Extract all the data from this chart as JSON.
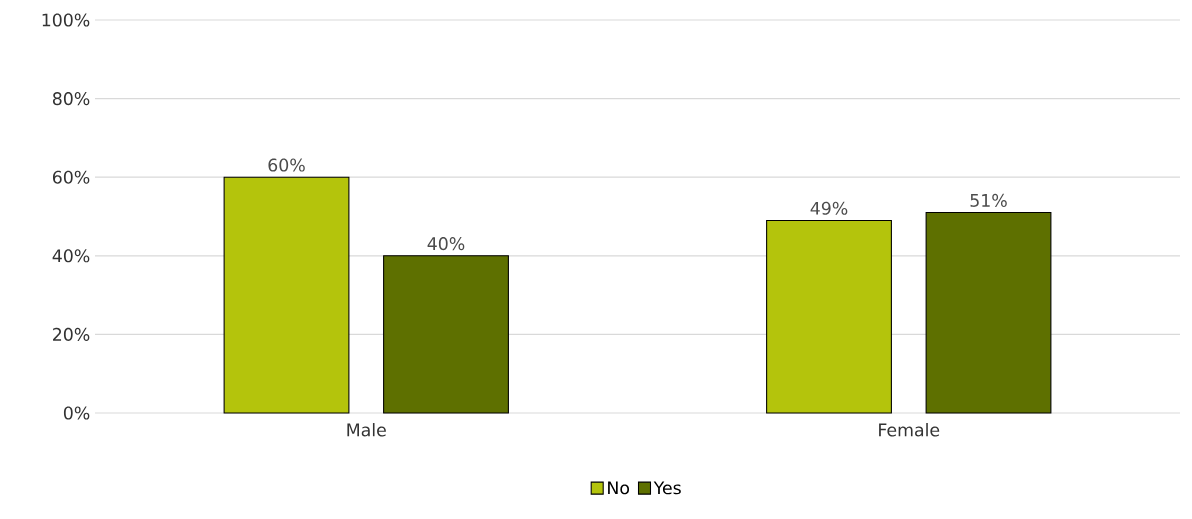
{
  "chart_data": {
    "type": "bar",
    "categories": [
      "Male",
      "Female"
    ],
    "series": [
      {
        "name": "No",
        "color": "#b4c40c",
        "values": [
          60,
          49
        ],
        "value_labels": [
          "60%",
          "49%"
        ]
      },
      {
        "name": "Yes",
        "color": "#5e7000",
        "values": [
          40,
          51
        ],
        "value_labels": [
          "40%",
          "51%"
        ]
      }
    ],
    "ylim": [
      0,
      100
    ],
    "yticks": [
      {
        "value": 0,
        "label": "0%"
      },
      {
        "value": 20,
        "label": "20%"
      },
      {
        "value": 40,
        "label": "40%"
      },
      {
        "value": 60,
        "label": "60%"
      },
      {
        "value": 80,
        "label": "80%"
      },
      {
        "value": 100,
        "label": "100%"
      }
    ],
    "grid": "y",
    "legend": "bottom"
  }
}
